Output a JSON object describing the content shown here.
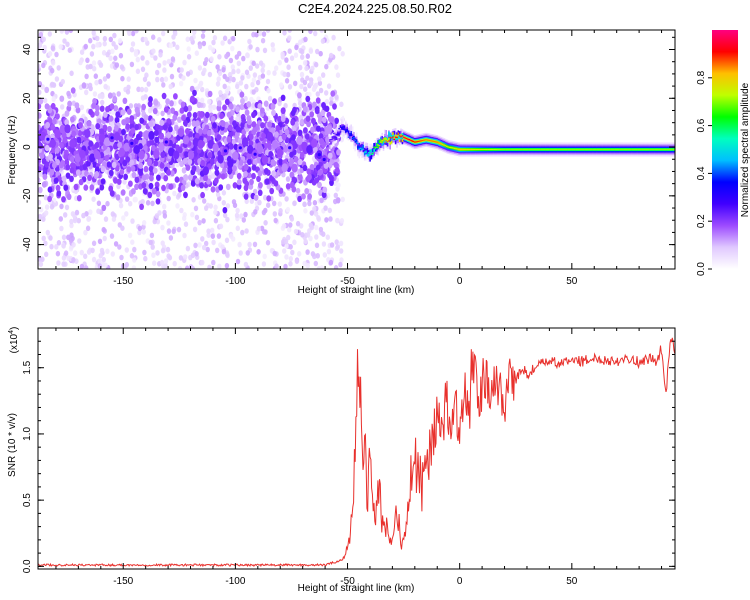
{
  "title": "C2E4.2024.225.08.50.R02",
  "chart_data": [
    {
      "type": "heatmap",
      "xlabel": "Height of straight line (km)",
      "ylabel": "Frequency (Hz)",
      "xlim": [
        -188,
        96
      ],
      "ylim": [
        -50,
        48
      ],
      "xticks": [
        -150,
        -100,
        -50,
        0,
        50
      ],
      "yticks": [
        -40,
        -20,
        0,
        20,
        40
      ],
      "colorbar": {
        "label": "Normalized spectral amplitude",
        "range": [
          0,
          1
        ],
        "ticks": [
          "0.0",
          "0.2",
          "0.4",
          "0.6",
          "0.8"
        ],
        "colormap": [
          "#ffffff",
          "#e0c8ff",
          "#9d4bff",
          "#4000ff",
          "#0000ff",
          "#00bfff",
          "#00ffbf",
          "#00ff00",
          "#bfff00",
          "#ffbf00",
          "#ff0000",
          "#ff0080"
        ]
      },
      "signal_trace": {
        "x": [
          -188,
          -170,
          -150,
          -130,
          -110,
          -90,
          -70,
          -60,
          -52,
          -48,
          -45,
          -40,
          -35,
          -30,
          -25,
          -20,
          -15,
          -10,
          -5,
          0,
          10,
          20,
          40,
          60,
          80,
          96
        ],
        "frequency": [
          0,
          0,
          0,
          0,
          0,
          0,
          0,
          0,
          8,
          5,
          0,
          -3,
          2,
          4,
          4,
          2,
          3,
          2,
          0,
          -1,
          -1,
          -1,
          -1,
          -1,
          -1,
          -1
        ],
        "amplitude": [
          0.15,
          0.15,
          0.15,
          0.15,
          0.15,
          0.15,
          0.15,
          0.2,
          0.35,
          0.4,
          0.45,
          0.55,
          0.8,
          0.9,
          0.95,
          0.9,
          0.85,
          0.85,
          0.75,
          0.8,
          0.75,
          0.7,
          0.7,
          0.7,
          0.7,
          0.7
        ]
      },
      "noise_region": {
        "x_range": [
          -188,
          -60
        ],
        "frequency_spread": [
          -50,
          48
        ]
      }
    },
    {
      "type": "line",
      "xlabel": "Height of straight line (km)",
      "ylabel": "SNR (10 * v/v)",
      "multiplier_label": "(x10",
      "multiplier_exponent": "4",
      "multiplier_close": ")",
      "xlim": [
        -188,
        96
      ],
      "ylim": [
        -0.02,
        1.8
      ],
      "xticks": [
        -150,
        -100,
        -50,
        0,
        50
      ],
      "yticks": [
        0.0,
        0.5,
        1.0,
        1.5
      ],
      "ytick_labels": [
        "0.0",
        "0.5",
        "1.0",
        "1.5"
      ],
      "color": "#e8302c",
      "series": [
        {
          "x": [
            -188,
            -150,
            -100,
            -60,
            -52,
            -50,
            -48,
            -47,
            -46,
            -45,
            -44,
            -43,
            -42,
            -41,
            -40,
            -38,
            -36,
            -34,
            -32,
            -30,
            -28,
            -26,
            -24,
            -22,
            -20,
            -18,
            -16,
            -14,
            -12,
            -10,
            -8,
            -6,
            -4,
            -2,
            0,
            2,
            4,
            6,
            8,
            10,
            12,
            15,
            18,
            20,
            22,
            25,
            28,
            30,
            35,
            40,
            45,
            50,
            55,
            60,
            65,
            70,
            75,
            80,
            85,
            88,
            90,
            92,
            94,
            96
          ],
          "values": [
            0.01,
            0.01,
            0.01,
            0.01,
            0.05,
            0.15,
            0.35,
            0.7,
            1.3,
            1.5,
            1.1,
            0.6,
            0.9,
            0.5,
            0.8,
            0.35,
            0.6,
            0.25,
            0.3,
            0.15,
            0.5,
            0.15,
            0.25,
            0.65,
            0.8,
            0.7,
            0.55,
            0.85,
            1.0,
            1.15,
            0.9,
            1.3,
            1.0,
            1.35,
            0.85,
            1.4,
            1.1,
            1.65,
            1.15,
            1.35,
            1.4,
            1.3,
            1.35,
            1.25,
            1.45,
            1.4,
            1.5,
            1.45,
            1.52,
            1.55,
            1.53,
            1.56,
            1.55,
            1.57,
            1.56,
            1.55,
            1.58,
            1.54,
            1.57,
            1.55,
            1.65,
            1.3,
            1.75,
            1.6
          ]
        }
      ]
    }
  ]
}
